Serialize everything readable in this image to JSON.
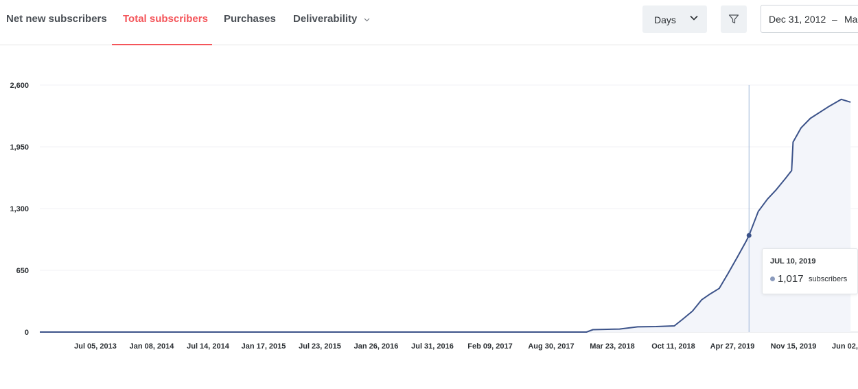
{
  "tabs": [
    {
      "label": "Net new subscribers",
      "active": false
    },
    {
      "label": "Total subscribers",
      "active": true
    },
    {
      "label": "Purchases",
      "active": false
    },
    {
      "label": "Deliverability",
      "active": false
    }
  ],
  "controls": {
    "period_label": "Days",
    "date_start": "Dec 31, 2012",
    "date_sep": "–",
    "date_end_partial": "Ma"
  },
  "colors": {
    "accent": "#f4555a",
    "line": "#3b5289",
    "area": "#f3f5fa",
    "cursor": "#9db4d8"
  },
  "icons": {
    "period_chevron": "chevron-down-icon",
    "tab_chevron": "chevron-down-icon",
    "filter": "filter-icon"
  },
  "tooltip": {
    "date": "JUL 10, 2019",
    "value": "1,017",
    "unit": "subscribers"
  },
  "chart_data": {
    "type": "area",
    "title": "",
    "xlabel": "",
    "ylabel": "",
    "ylim": [
      0,
      2600
    ],
    "y_ticks": [
      "0",
      "650",
      "1,300",
      "1,950",
      "2,600"
    ],
    "x_ticks": [
      "Jul 05, 2013",
      "Jan 08, 2014",
      "Jul 14, 2014",
      "Jan 17, 2015",
      "Jul 23, 2015",
      "Jan 26, 2016",
      "Jul 31, 2016",
      "Feb 09, 2017",
      "Aug 30, 2017",
      "Mar 23, 2018",
      "Oct 11, 2018",
      "Apr 27, 2019",
      "Nov 15, 2019",
      "Jun 02,"
    ],
    "grid": true,
    "series": [
      {
        "values": [
          [
            "2012-12-31",
            0
          ],
          [
            "2017-12-01",
            0
          ],
          [
            "2018-01-10",
            0
          ],
          [
            "2018-02-01",
            25
          ],
          [
            "2018-05-01",
            32
          ],
          [
            "2018-07-01",
            55
          ],
          [
            "2018-09-01",
            58
          ],
          [
            "2018-11-01",
            65
          ],
          [
            "2018-12-01",
            140
          ],
          [
            "2019-01-01",
            220
          ],
          [
            "2019-02-01",
            340
          ],
          [
            "2019-03-01",
            400
          ],
          [
            "2019-04-01",
            460
          ],
          [
            "2019-05-01",
            620
          ],
          [
            "2019-06-01",
            790
          ],
          [
            "2019-07-01",
            960
          ],
          [
            "2019-07-10",
            1017
          ],
          [
            "2019-08-10",
            1270
          ],
          [
            "2019-09-10",
            1400
          ],
          [
            "2019-10-10",
            1500
          ],
          [
            "2019-11-10",
            1620
          ],
          [
            "2019-11-30",
            1700
          ],
          [
            "2019-12-05",
            2000
          ],
          [
            "2020-01-01",
            2150
          ],
          [
            "2020-02-01",
            2250
          ],
          [
            "2020-04-01",
            2370
          ],
          [
            "2020-05-15",
            2450
          ],
          [
            "2020-06-15",
            2420
          ]
        ]
      }
    ],
    "highlight": {
      "date": "2019-07-10",
      "value": 1017
    }
  }
}
